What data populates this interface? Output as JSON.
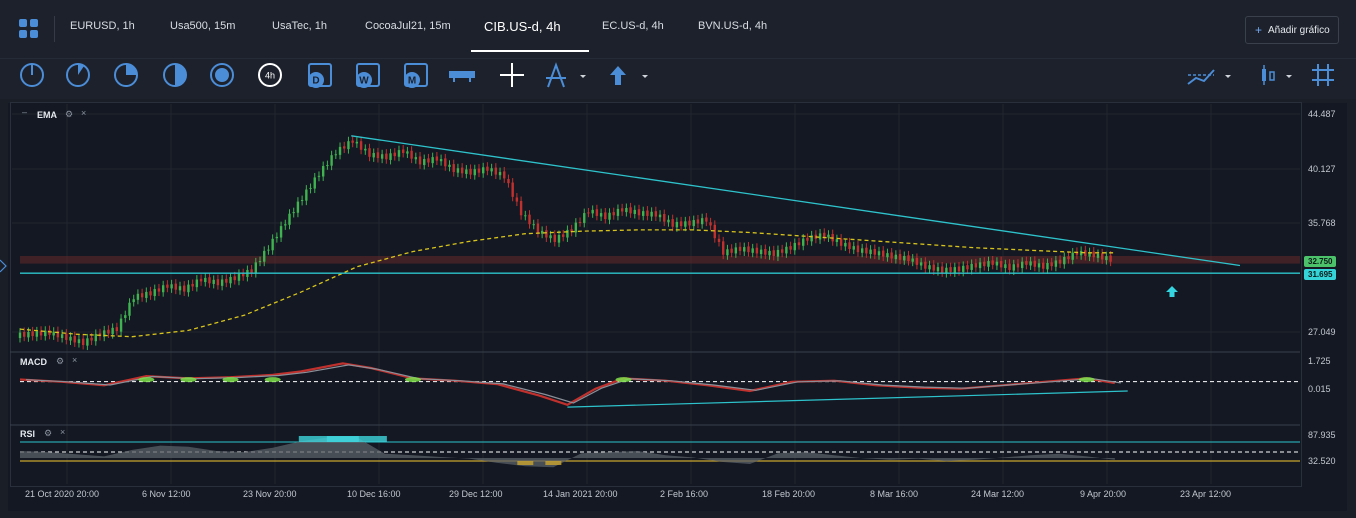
{
  "tabs": [
    {
      "label": "EURUSD, 1h"
    },
    {
      "label": "Usa500, 15m"
    },
    {
      "label": "UsaTec, 1h"
    },
    {
      "label": "CocoaJul21, 15m"
    },
    {
      "label": "CIB.US-d, 4h"
    },
    {
      "label": "EC.US-d, 4h"
    },
    {
      "label": "BVN.US-d, 4h"
    }
  ],
  "add_chart_label": "Añadir gráfico",
  "toolbar": {
    "icons": [
      "timeframe-1-icon",
      "timeframe-2-icon",
      "timeframe-3-icon",
      "timeframe-4-icon",
      "timeframe-5-icon",
      "timeframe-4h-icon",
      "calendar-d-icon",
      "calendar-w-icon",
      "calendar-m-icon",
      "ruler-icon",
      "crosshair-icon",
      "drawing-compass-icon",
      "arrow-up-icon",
      "indicators-icon",
      "candle-type-icon",
      "grid-icon"
    ],
    "timeframe_4h_label": "4h",
    "cal_d": "D",
    "cal_w": "W",
    "cal_m": "M",
    "accent": "#4c8dd8"
  },
  "panels": {
    "ema_label": "EMA",
    "macd_label": "MACD",
    "rsi_label": "RSI",
    "close_symbol": "×"
  },
  "chart_data": [
    {
      "type": "candlestick",
      "indicator": "EMA",
      "price_axis_ticks": [
        "44.487",
        "40.127",
        "35.768",
        "27.049"
      ],
      "ylim": [
        25.5,
        45.0
      ],
      "current_price": "32.750",
      "horizontal_level": "31.695",
      "x_ticks": [
        "21 Oct 2020 20:00",
        "6 Nov 12:00",
        "23 Nov 20:00",
        "10 Dec 16:00",
        "29 Dec 12:00",
        "14 Jan 2021 20:00",
        "2 Feb 16:00",
        "18 Feb 20:00",
        "8 Mar 16:00",
        "24 Mar 12:00",
        "9 Apr 20:00",
        "23 Apr 12:00"
      ],
      "close_series": [
        [
          0,
          26.8
        ],
        [
          12,
          26.9
        ],
        [
          24,
          27.0
        ],
        [
          36,
          26.6
        ],
        [
          48,
          26.2
        ],
        [
          60,
          26.9
        ],
        [
          72,
          27.3
        ],
        [
          84,
          29.8
        ],
        [
          96,
          30.1
        ],
        [
          108,
          30.7
        ],
        [
          120,
          30.4
        ],
        [
          132,
          31.2
        ],
        [
          144,
          30.9
        ],
        [
          156,
          31.3
        ],
        [
          168,
          31.9
        ],
        [
          180,
          33.7
        ],
        [
          192,
          35.7
        ],
        [
          204,
          37.6
        ],
        [
          216,
          39.5
        ],
        [
          228,
          41.2
        ],
        [
          240,
          42.1
        ],
        [
          252,
          41.0
        ],
        [
          264,
          40.8
        ],
        [
          276,
          41.3
        ],
        [
          288,
          40.4
        ],
        [
          300,
          40.7
        ],
        [
          312,
          39.8
        ],
        [
          324,
          39.6
        ],
        [
          336,
          39.9
        ],
        [
          348,
          39.3
        ],
        [
          360,
          36.4
        ],
        [
          372,
          35.0
        ],
        [
          384,
          34.3
        ],
        [
          396,
          35.1
        ],
        [
          408,
          36.6
        ],
        [
          420,
          36.1
        ],
        [
          432,
          36.7
        ],
        [
          444,
          36.4
        ],
        [
          456,
          36.3
        ],
        [
          468,
          35.5
        ],
        [
          480,
          35.6
        ],
        [
          492,
          35.9
        ],
        [
          504,
          33.3
        ],
        [
          516,
          33.6
        ],
        [
          528,
          33.4
        ],
        [
          540,
          33.2
        ],
        [
          552,
          33.7
        ],
        [
          564,
          34.4
        ],
        [
          576,
          34.7
        ],
        [
          588,
          34.0
        ],
        [
          600,
          33.5
        ],
        [
          612,
          33.3
        ],
        [
          624,
          33.0
        ],
        [
          636,
          32.8
        ],
        [
          648,
          32.2
        ],
        [
          660,
          31.9
        ],
        [
          672,
          32.0
        ],
        [
          684,
          32.3
        ],
        [
          696,
          32.5
        ],
        [
          708,
          32.1
        ],
        [
          720,
          32.5
        ],
        [
          732,
          32.2
        ],
        [
          744,
          32.6
        ],
        [
          756,
          33.3
        ],
        [
          768,
          33.1
        ],
        [
          780,
          32.75
        ]
      ],
      "ema_series": [
        [
          0,
          27.3
        ],
        [
          40,
          26.9
        ],
        [
          80,
          26.7
        ],
        [
          120,
          27.2
        ],
        [
          160,
          28.4
        ],
        [
          200,
          30.2
        ],
        [
          240,
          32.2
        ],
        [
          280,
          33.4
        ],
        [
          320,
          34.2
        ],
        [
          360,
          34.8
        ],
        [
          400,
          35.0
        ],
        [
          440,
          35.1
        ],
        [
          480,
          35.1
        ],
        [
          520,
          34.9
        ],
        [
          560,
          34.6
        ],
        [
          600,
          34.3
        ],
        [
          640,
          34.0
        ],
        [
          680,
          33.7
        ],
        [
          720,
          33.5
        ],
        [
          760,
          33.3
        ],
        [
          780,
          33.3
        ]
      ],
      "trendlines": [
        {
          "name": "descending",
          "from": [
            236,
            42.5
          ],
          "to": [
            830,
            32.3
          ]
        },
        {
          "name": "support",
          "from": [
            0,
            31.695
          ],
          "to": [
            830,
            31.695
          ]
        }
      ],
      "signal_arrow": "up"
    },
    {
      "type": "line",
      "indicator": "MACD",
      "axis_ticks": [
        "1.725",
        "0.015"
      ],
      "ylim": [
        -2.8,
        1.9
      ],
      "macd_series": [
        [
          0,
          0.2
        ],
        [
          30,
          0.0
        ],
        [
          60,
          -0.3
        ],
        [
          90,
          0.5
        ],
        [
          120,
          0.3
        ],
        [
          150,
          0.4
        ],
        [
          180,
          0.6
        ],
        [
          200,
          0.9
        ],
        [
          230,
          1.6
        ],
        [
          250,
          1.2
        ],
        [
          280,
          0.3
        ],
        [
          310,
          0.1
        ],
        [
          340,
          -0.2
        ],
        [
          370,
          -1.2
        ],
        [
          390,
          -2.0
        ],
        [
          410,
          -0.6
        ],
        [
          430,
          0.3
        ],
        [
          460,
          0.1
        ],
        [
          490,
          -0.3
        ],
        [
          520,
          -0.8
        ],
        [
          550,
          0.0
        ],
        [
          580,
          0.1
        ],
        [
          610,
          -0.3
        ],
        [
          640,
          -0.5
        ],
        [
          670,
          -0.6
        ],
        [
          700,
          -0.3
        ],
        [
          730,
          0.0
        ],
        [
          760,
          0.3
        ],
        [
          780,
          -0.1
        ]
      ],
      "trendline": {
        "from": [
          390,
          -2.2
        ],
        "to": [
          750,
          -0.8
        ]
      }
    },
    {
      "type": "area",
      "indicator": "RSI",
      "axis_ticks": [
        "87.935",
        "32.520"
      ],
      "ylim": [
        25,
        95
      ],
      "rsi_series": [
        [
          0,
          60
        ],
        [
          20,
          58
        ],
        [
          40,
          54
        ],
        [
          60,
          50
        ],
        [
          80,
          62
        ],
        [
          100,
          70
        ],
        [
          120,
          68
        ],
        [
          140,
          60
        ],
        [
          160,
          58
        ],
        [
          180,
          66
        ],
        [
          200,
          78
        ],
        [
          220,
          85
        ],
        [
          240,
          85
        ],
        [
          260,
          55
        ],
        [
          280,
          52
        ],
        [
          300,
          49
        ],
        [
          320,
          46
        ],
        [
          340,
          38
        ],
        [
          360,
          32
        ],
        [
          380,
          30
        ],
        [
          400,
          56
        ],
        [
          420,
          58
        ],
        [
          440,
          60
        ],
        [
          460,
          52
        ],
        [
          480,
          48
        ],
        [
          500,
          40
        ],
        [
          520,
          36
        ],
        [
          540,
          56
        ],
        [
          560,
          58
        ],
        [
          580,
          52
        ],
        [
          600,
          47
        ],
        [
          620,
          44
        ],
        [
          640,
          46
        ],
        [
          660,
          41
        ],
        [
          680,
          44
        ],
        [
          700,
          48
        ],
        [
          720,
          52
        ],
        [
          740,
          55
        ],
        [
          760,
          50
        ],
        [
          780,
          44
        ]
      ]
    }
  ]
}
